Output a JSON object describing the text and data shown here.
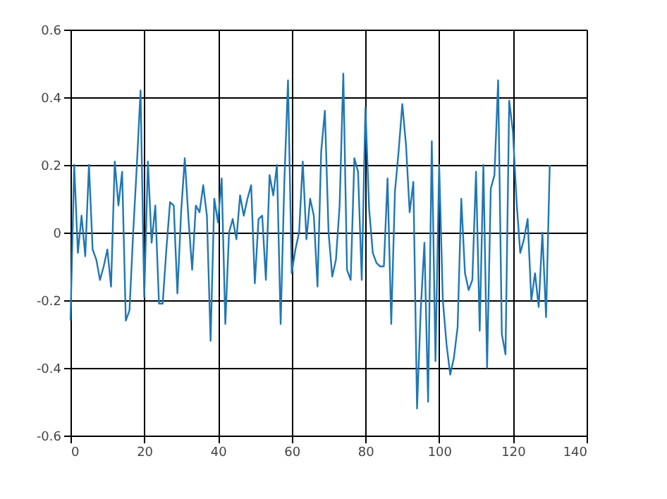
{
  "chart_data": {
    "type": "line",
    "x": [
      0,
      1,
      2,
      3,
      4,
      5,
      6,
      7,
      8,
      9,
      10,
      11,
      12,
      13,
      14,
      15,
      16,
      17,
      18,
      19,
      20,
      21,
      22,
      23,
      24,
      25,
      26,
      27,
      28,
      29,
      30,
      31,
      32,
      33,
      34,
      35,
      36,
      37,
      38,
      39,
      40,
      41,
      42,
      43,
      44,
      45,
      46,
      47,
      48,
      49,
      50,
      51,
      52,
      53,
      54,
      55,
      56,
      57,
      58,
      59,
      60,
      61,
      62,
      63,
      64,
      65,
      66,
      67,
      68,
      69,
      70,
      71,
      72,
      73,
      74,
      75,
      76,
      77,
      78,
      79,
      80,
      81,
      82,
      83,
      84,
      85,
      86,
      87,
      88,
      89,
      90,
      91,
      92,
      93,
      94,
      95,
      96,
      97,
      98,
      99,
      100,
      101,
      102,
      103,
      104,
      105,
      106,
      107,
      108,
      109,
      110,
      111,
      112,
      113,
      114,
      115,
      116,
      117,
      118,
      119,
      120,
      121,
      122,
      123,
      124,
      125,
      126,
      127,
      128,
      129,
      130
    ],
    "series": [
      {
        "color": "#1f77b4",
        "values": [
          -0.26,
          0.2,
          -0.06,
          0.05,
          -0.07,
          0.2,
          -0.05,
          -0.08,
          -0.14,
          -0.1,
          -0.05,
          -0.16,
          0.21,
          0.08,
          0.18,
          -0.26,
          -0.23,
          0.0,
          0.2,
          0.42,
          -0.19,
          0.21,
          -0.03,
          0.08,
          -0.21,
          -0.21,
          -0.05,
          0.09,
          0.08,
          -0.18,
          0.06,
          0.22,
          0.04,
          -0.11,
          0.08,
          0.06,
          0.14,
          0.05,
          -0.32,
          0.1,
          0.03,
          0.16,
          -0.27,
          0.0,
          0.04,
          -0.02,
          0.11,
          0.05,
          0.1,
          0.14,
          -0.15,
          0.04,
          0.05,
          -0.14,
          0.17,
          0.11,
          0.2,
          -0.27,
          0.15,
          0.45,
          -0.12,
          -0.05,
          0.0,
          0.21,
          -0.02,
          0.1,
          0.05,
          -0.16,
          0.24,
          0.36,
          0.0,
          -0.13,
          -0.08,
          0.08,
          0.47,
          -0.11,
          -0.14,
          0.22,
          0.18,
          -0.14,
          0.37,
          0.07,
          -0.06,
          -0.09,
          -0.1,
          -0.1,
          0.16,
          -0.27,
          0.12,
          0.24,
          0.38,
          0.26,
          0.06,
          0.15,
          -0.52,
          -0.23,
          -0.03,
          -0.5,
          0.27,
          -0.38,
          0.2,
          -0.2,
          -0.33,
          -0.42,
          -0.37,
          -0.28,
          0.1,
          -0.12,
          -0.17,
          -0.14,
          0.18,
          -0.29,
          0.2,
          -0.4,
          0.13,
          0.17,
          0.45,
          -0.3,
          -0.36,
          0.39,
          0.3,
          0.09,
          -0.06,
          -0.02,
          0.04,
          -0.2,
          -0.12,
          -0.22,
          0.0,
          -0.25,
          0.2
        ]
      }
    ],
    "xlim": [
      0,
      140
    ],
    "xticks": [
      0,
      20,
      40,
      60,
      80,
      100,
      120,
      140
    ],
    "ylim": [
      -0.6,
      0.6
    ],
    "yticks": [
      -0.6,
      -0.4,
      -0.2,
      0,
      0.2,
      0.4,
      0.6
    ],
    "grid": true
  }
}
